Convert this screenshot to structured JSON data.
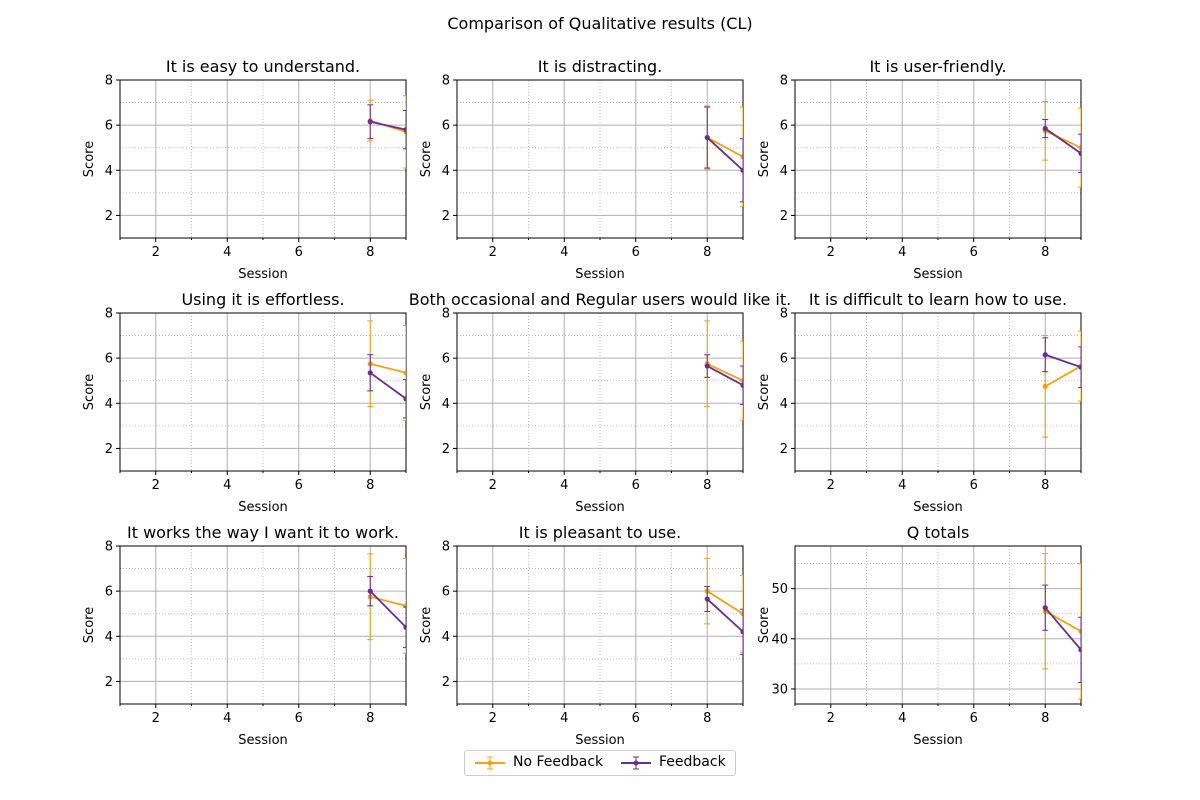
{
  "title": "Comparison of Qualitative results (CL)",
  "colors": {
    "no_feedback": "#f5a010",
    "feedback": "#6a2d91",
    "grid": "#b0b0b0"
  },
  "legend": {
    "no_feedback": "No Feedback",
    "feedback": "Feedback"
  },
  "chart_data": [
    {
      "type": "line",
      "title": "It is easy to understand.",
      "xlabel": "Session",
      "ylabel": "Score",
      "xlim": [
        1,
        9
      ],
      "ylim": [
        1,
        8
      ],
      "xticks": [
        2,
        4,
        6,
        8
      ],
      "yticks": [
        2,
        4,
        6,
        8
      ],
      "grid": true,
      "x": [
        8,
        9
      ],
      "series": [
        {
          "name": "No Feedback",
          "values": [
            6.2,
            5.7
          ],
          "err": [
            0.9,
            1.6
          ]
        },
        {
          "name": "Feedback",
          "values": [
            6.15,
            5.8
          ],
          "err": [
            0.75,
            0.85
          ]
        }
      ]
    },
    {
      "type": "line",
      "title": "It is distracting.",
      "xlabel": "Session",
      "ylabel": "Score",
      "xlim": [
        1,
        9
      ],
      "ylim": [
        1,
        8
      ],
      "xticks": [
        2,
        4,
        6,
        8
      ],
      "yticks": [
        2,
        4,
        6,
        8
      ],
      "grid": true,
      "x": [
        8,
        9
      ],
      "series": [
        {
          "name": "No Feedback",
          "values": [
            5.45,
            4.6
          ],
          "err": [
            1.4,
            2.2
          ]
        },
        {
          "name": "Feedback",
          "values": [
            5.45,
            4.0
          ],
          "err": [
            1.35,
            1.4
          ]
        }
      ]
    },
    {
      "type": "line",
      "title": "It is user-friendly.",
      "xlabel": "Session",
      "ylabel": "Score",
      "xlim": [
        1,
        9
      ],
      "ylim": [
        1,
        8
      ],
      "xticks": [
        2,
        4,
        6,
        8
      ],
      "yticks": [
        2,
        4,
        6,
        8
      ],
      "grid": true,
      "x": [
        8,
        9
      ],
      "series": [
        {
          "name": "No Feedback",
          "values": [
            5.75,
            5.0
          ],
          "err": [
            1.3,
            1.75
          ]
        },
        {
          "name": "Feedback",
          "values": [
            5.85,
            4.75
          ],
          "err": [
            0.4,
            0.85
          ]
        }
      ]
    },
    {
      "type": "line",
      "title": "Using it is effortless.",
      "xlabel": "Session",
      "ylabel": "Score",
      "xlim": [
        1,
        9
      ],
      "ylim": [
        1,
        8
      ],
      "xticks": [
        2,
        4,
        6,
        8
      ],
      "yticks": [
        2,
        4,
        6,
        8
      ],
      "grid": true,
      "x": [
        8,
        9
      ],
      "series": [
        {
          "name": "No Feedback",
          "values": [
            5.75,
            5.35
          ],
          "err": [
            1.9,
            2.1
          ]
        },
        {
          "name": "Feedback",
          "values": [
            5.35,
            4.2
          ],
          "err": [
            0.8,
            0.85
          ]
        }
      ]
    },
    {
      "type": "line",
      "title": "Both occasional and Regular users would like it.",
      "xlabel": "Session",
      "ylabel": "Score",
      "xlim": [
        1,
        9
      ],
      "ylim": [
        1,
        8
      ],
      "xticks": [
        2,
        4,
        6,
        8
      ],
      "yticks": [
        2,
        4,
        6,
        8
      ],
      "grid": true,
      "x": [
        8,
        9
      ],
      "series": [
        {
          "name": "No Feedback",
          "values": [
            5.75,
            5.0
          ],
          "err": [
            1.9,
            1.75
          ]
        },
        {
          "name": "Feedback",
          "values": [
            5.65,
            4.8
          ],
          "err": [
            0.5,
            0.85
          ]
        }
      ]
    },
    {
      "type": "line",
      "title": "It is difficult to learn how to use.",
      "xlabel": "Session",
      "ylabel": "Score",
      "xlim": [
        1,
        9
      ],
      "ylim": [
        1,
        8
      ],
      "xticks": [
        2,
        4,
        6,
        8
      ],
      "yticks": [
        2,
        4,
        6,
        8
      ],
      "grid": true,
      "x": [
        8,
        9
      ],
      "series": [
        {
          "name": "No Feedback",
          "values": [
            4.75,
            5.65
          ],
          "err": [
            2.25,
            1.55
          ]
        },
        {
          "name": "Feedback",
          "values": [
            6.15,
            5.6
          ],
          "err": [
            0.75,
            0.9
          ]
        }
      ]
    },
    {
      "type": "line",
      "title": "It works the way I want it to work.",
      "xlabel": "Session",
      "ylabel": "Score",
      "xlim": [
        1,
        9
      ],
      "ylim": [
        1,
        8
      ],
      "xticks": [
        2,
        4,
        6,
        8
      ],
      "yticks": [
        2,
        4,
        6,
        8
      ],
      "grid": true,
      "x": [
        8,
        9
      ],
      "series": [
        {
          "name": "No Feedback",
          "values": [
            5.75,
            5.35
          ],
          "err": [
            1.9,
            2.1
          ]
        },
        {
          "name": "Feedback",
          "values": [
            6.0,
            4.4
          ],
          "err": [
            0.65,
            0.9
          ]
        }
      ]
    },
    {
      "type": "line",
      "title": "It is pleasant to use.",
      "xlabel": "Session",
      "ylabel": "Score",
      "xlim": [
        1,
        9
      ],
      "ylim": [
        1,
        8
      ],
      "xticks": [
        2,
        4,
        6,
        8
      ],
      "yticks": [
        2,
        4,
        6,
        8
      ],
      "grid": true,
      "x": [
        8,
        9
      ],
      "series": [
        {
          "name": "No Feedback",
          "values": [
            6.0,
            5.0
          ],
          "err": [
            1.45,
            1.7
          ]
        },
        {
          "name": "Feedback",
          "values": [
            5.65,
            4.2
          ],
          "err": [
            0.55,
            1.0
          ]
        }
      ]
    },
    {
      "type": "line",
      "title": "Q totals",
      "xlabel": "Session",
      "ylabel": "Score",
      "xlim": [
        1,
        9
      ],
      "ylim": [
        27,
        58.5
      ],
      "xticks": [
        2,
        4,
        6,
        8
      ],
      "yticks": [
        30,
        40,
        50
      ],
      "grid": true,
      "x": [
        8,
        9
      ],
      "series": [
        {
          "name": "No Feedback",
          "values": [
            45.5,
            41.5
          ],
          "err": [
            11.5,
            13.5
          ]
        },
        {
          "name": "Feedback",
          "values": [
            46.2,
            37.8
          ],
          "err": [
            4.5,
            6.5
          ]
        }
      ]
    }
  ]
}
